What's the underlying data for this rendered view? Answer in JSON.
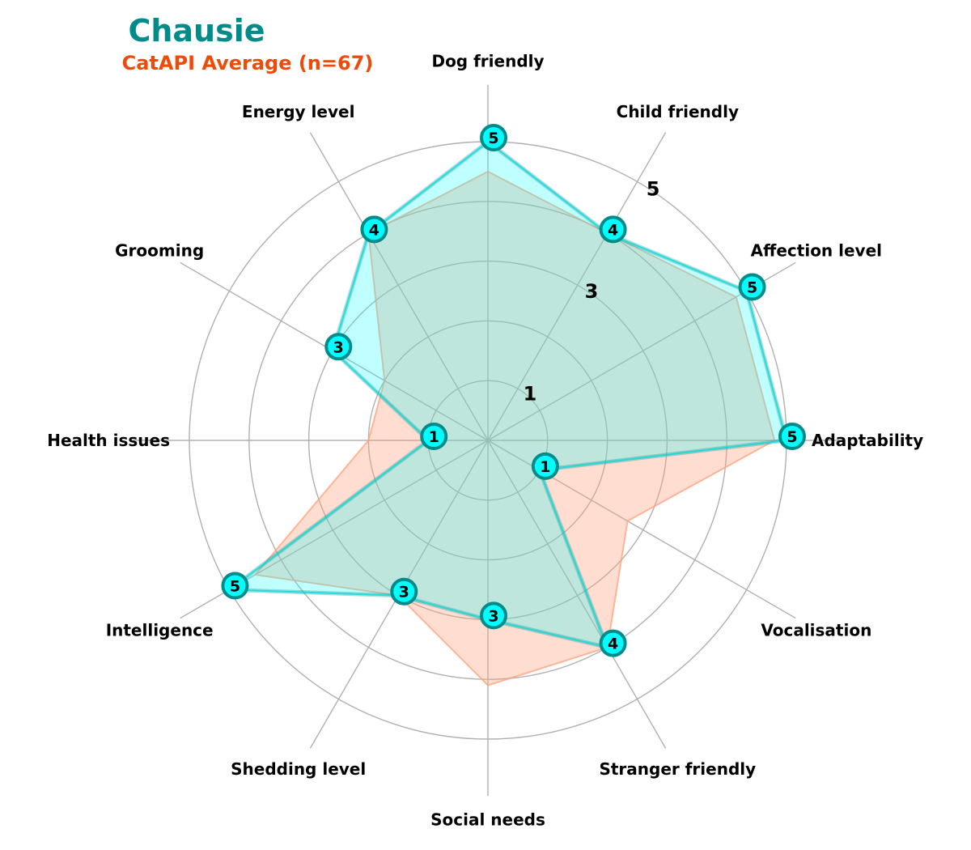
{
  "chart_data": {
    "type": "radar",
    "title": "Chausie",
    "subtitle": "CatAPI Average (n=67)",
    "categories": [
      "Adaptability",
      "Affection level",
      "Child friendly",
      "Dog friendly",
      "Energy level",
      "Grooming",
      "Health issues",
      "Intelligence",
      "Shedding level",
      "Social needs",
      "Stranger friendly",
      "Vocalisation"
    ],
    "ring_labels": [
      "1",
      "3",
      "5"
    ],
    "rmax": 5,
    "series": [
      {
        "values": [
          5,
          5,
          4,
          5,
          4,
          3,
          1,
          5,
          3,
          3,
          4,
          1
        ],
        "color": "#00ffff",
        "edge_color": "#008b8b",
        "opacity": 0.25,
        "markers": true
      },
      {
        "values": [
          4.8,
          4.8,
          4,
          4.5,
          4,
          2,
          2,
          4.5,
          3,
          4.1,
          4,
          2.7
        ],
        "color": "#ffa07a",
        "opacity": 0.35,
        "markers": false
      }
    ],
    "colors": {
      "title": "#008b8b",
      "subtitle": "#ee4b0b",
      "grid": "#b0b0b0"
    }
  }
}
